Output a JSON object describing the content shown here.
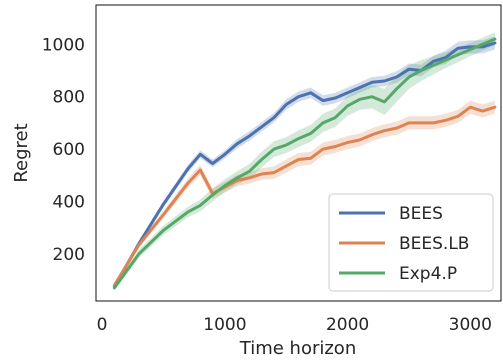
{
  "chart_data": {
    "type": "line",
    "xlabel": "Time horizon",
    "ylabel": "Regret",
    "xlim": [
      -50,
      3250
    ],
    "ylim": [
      20,
      1150
    ],
    "xticks": [
      0,
      1000,
      2000,
      3000
    ],
    "yticks": [
      200,
      400,
      600,
      800,
      1000
    ],
    "grid": false,
    "legend_position": "bottom-right",
    "series": [
      {
        "name": "BEES",
        "color": "#4c72b0",
        "x": [
          100,
          300,
          500,
          700,
          800,
          900,
          1000,
          1100,
          1200,
          1300,
          1400,
          1500,
          1600,
          1700,
          1800,
          1900,
          2000,
          2100,
          2200,
          2300,
          2400,
          2500,
          2600,
          2700,
          2800,
          2900,
          3000,
          3100,
          3200
        ],
        "y": [
          75,
          240,
          390,
          525,
          580,
          545,
          580,
          620,
          650,
          685,
          720,
          770,
          800,
          815,
          785,
          795,
          815,
          835,
          855,
          860,
          875,
          905,
          900,
          935,
          950,
          985,
          990,
          990,
          1005
        ],
        "band": [
          10,
          10,
          12,
          15,
          15,
          15,
          15,
          18,
          18,
          18,
          18,
          20,
          20,
          20,
          20,
          20,
          20,
          20,
          20,
          20,
          22,
          22,
          22,
          22,
          25,
          25,
          25,
          25,
          25
        ]
      },
      {
        "name": "BEES.LB",
        "color": "#dd8452",
        "x": [
          100,
          300,
          500,
          700,
          800,
          900,
          1000,
          1100,
          1200,
          1300,
          1400,
          1500,
          1600,
          1700,
          1800,
          1900,
          2000,
          2100,
          2200,
          2300,
          2400,
          2500,
          2600,
          2700,
          2800,
          2900,
          3000,
          3100,
          3200
        ],
        "y": [
          80,
          235,
          350,
          470,
          520,
          430,
          455,
          480,
          490,
          505,
          510,
          535,
          560,
          565,
          600,
          610,
          625,
          635,
          655,
          670,
          680,
          700,
          700,
          700,
          710,
          725,
          760,
          745,
          760
        ],
        "band": [
          10,
          12,
          14,
          18,
          20,
          20,
          20,
          22,
          22,
          22,
          24,
          25,
          25,
          25,
          25,
          25,
          25,
          25,
          25,
          25,
          25,
          25,
          25,
          25,
          25,
          25,
          25,
          25,
          25
        ]
      },
      {
        "name": "Exp4.P",
        "color": "#55a868",
        "x": [
          100,
          300,
          500,
          700,
          800,
          900,
          1000,
          1100,
          1200,
          1300,
          1400,
          1500,
          1600,
          1700,
          1800,
          1900,
          2000,
          2100,
          2200,
          2300,
          2400,
          2500,
          2600,
          2700,
          2800,
          2900,
          3000,
          3100,
          3200
        ],
        "y": [
          70,
          200,
          290,
          360,
          385,
          425,
          460,
          490,
          515,
          560,
          600,
          615,
          640,
          660,
          700,
          720,
          765,
          790,
          800,
          780,
          830,
          875,
          900,
          920,
          940,
          960,
          980,
          1000,
          1020
        ],
        "band": [
          10,
          15,
          18,
          20,
          22,
          25,
          25,
          25,
          28,
          30,
          30,
          30,
          32,
          32,
          35,
          35,
          38,
          40,
          45,
          50,
          50,
          45,
          40,
          35,
          30,
          28,
          25,
          25,
          25
        ]
      }
    ]
  }
}
